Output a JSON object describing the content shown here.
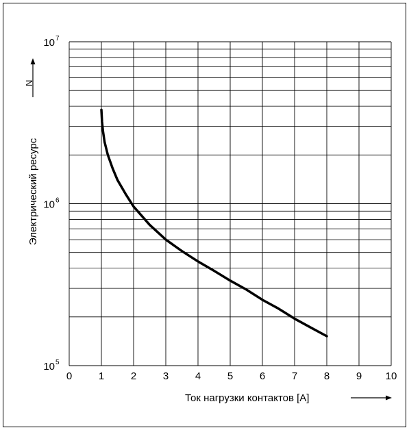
{
  "chart_data": {
    "type": "line",
    "title": "",
    "xlabel": "Ток нагрузки контактов [A]",
    "ylabel": "Электрический ресурс",
    "ylabel_unit": "N",
    "x_ticks": [
      "0",
      "1",
      "2",
      "3",
      "4",
      "5",
      "6",
      "7",
      "8",
      "9",
      "10"
    ],
    "y_ticks": [
      {
        "base": "10",
        "exp": "5",
        "value": 100000
      },
      {
        "base": "10",
        "exp": "6",
        "value": 1000000
      },
      {
        "base": "10",
        "exp": "7",
        "value": 10000000
      }
    ],
    "xlim": [
      0,
      10
    ],
    "ylim": [
      100000,
      10000000
    ],
    "yscale": "log",
    "grid": true,
    "legend": "none",
    "line_color": "#000000",
    "series": [
      {
        "x": [
          1.0,
          1.02,
          1.05,
          1.1,
          1.2,
          1.35,
          1.5,
          1.75,
          2.0,
          2.5,
          3.0,
          3.5,
          4.0,
          4.5,
          5.0,
          5.5,
          6.0,
          6.5,
          7.0,
          7.5,
          8.0
        ],
        "y": [
          3800000,
          3200000,
          2800000,
          2400000,
          2000000,
          1650000,
          1400000,
          1150000,
          960000,
          740000,
          600000,
          510000,
          440000,
          385000,
          335000,
          295000,
          255000,
          225000,
          195000,
          172000,
          152000
        ]
      }
    ]
  }
}
